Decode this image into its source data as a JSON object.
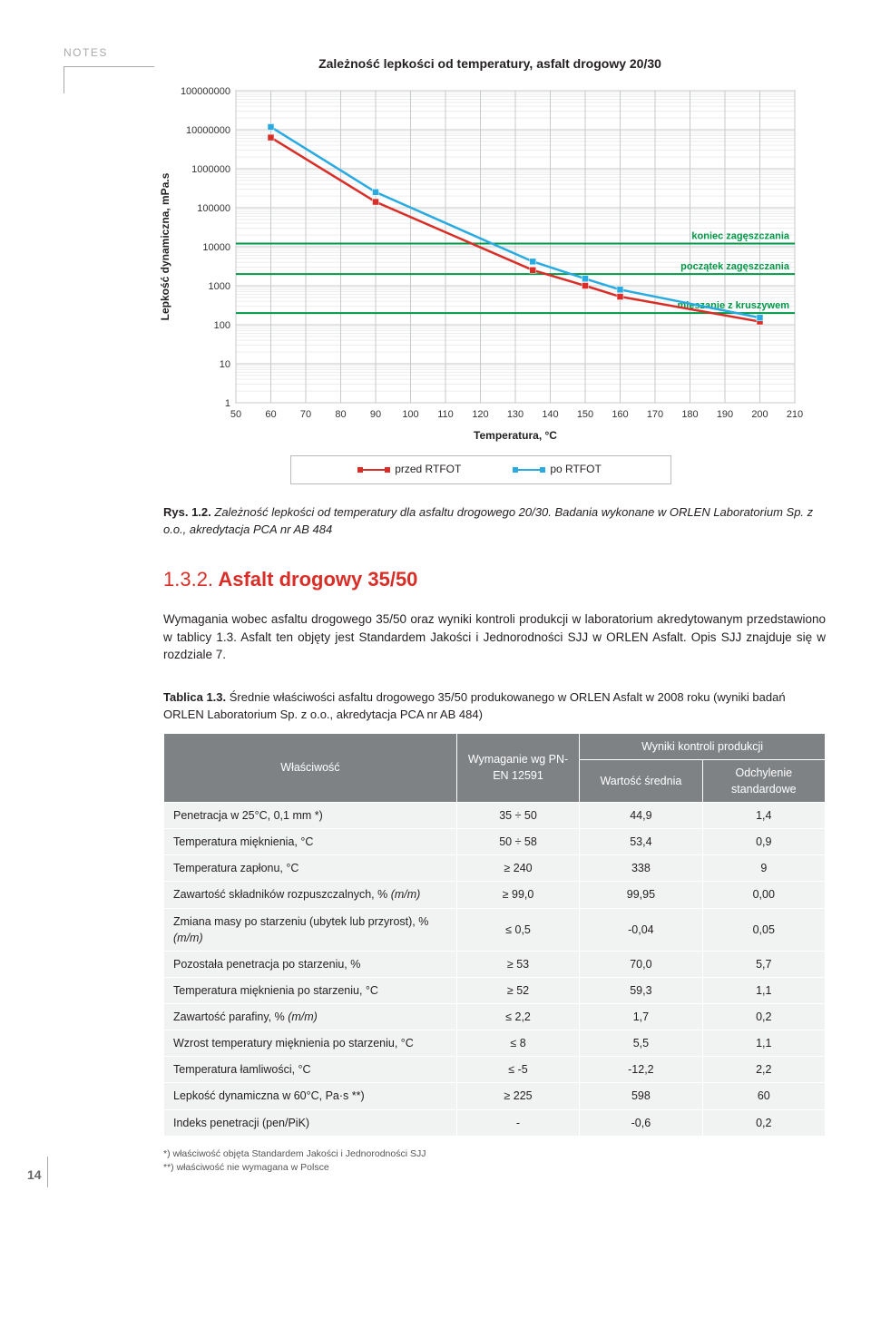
{
  "notes_label": "NOTES",
  "chart": {
    "title": "Zależność lepkości od temperatury, asfalt drogowy 20/30",
    "ylabel": "Lepkość dynamiczna, mPa.s",
    "xlabel": "Temperatura, °C",
    "x_ticks": [
      50,
      60,
      70,
      80,
      90,
      100,
      110,
      120,
      130,
      140,
      150,
      160,
      170,
      180,
      190,
      200,
      210
    ],
    "y_exponents": [
      0,
      1,
      2,
      3,
      4,
      5,
      6,
      7,
      8
    ],
    "y_tick_labels": [
      "1",
      "10",
      "100",
      "1000",
      "10000",
      "100000",
      "1000000",
      "10000000",
      "100000000"
    ],
    "plot_bg": "#ffffff",
    "grid_color": "#c8c9cb",
    "grid_minor_color": "#e2e3e4",
    "border_color": "#7a7c7f",
    "annotations": [
      {
        "text": "koniec zagęszczania",
        "y_exp": 4.08,
        "color": "#009846",
        "text_color": "#009846"
      },
      {
        "text": "początek zagęszczania",
        "y_exp": 3.3,
        "color": "#009846",
        "text_color": "#009846"
      },
      {
        "text": "mieszanie z kruszywem",
        "y_exp": 2.3,
        "color": "#009846",
        "text_color": "#009846"
      }
    ],
    "series": [
      {
        "name": "przed RTFOT",
        "color": "#d92e27",
        "marker_color": "#d92e27",
        "points": [
          {
            "x": 60,
            "y_exp": 6.8
          },
          {
            "x": 90,
            "y_exp": 5.15
          },
          {
            "x": 135,
            "y_exp": 3.4
          },
          {
            "x": 150,
            "y_exp": 3.0
          },
          {
            "x": 160,
            "y_exp": 2.72
          },
          {
            "x": 200,
            "y_exp": 2.08
          }
        ]
      },
      {
        "name": "po RTFOT",
        "color": "#29abe2",
        "marker_color": "#29abe2",
        "points": [
          {
            "x": 60,
            "y_exp": 7.07
          },
          {
            "x": 90,
            "y_exp": 5.4
          },
          {
            "x": 135,
            "y_exp": 3.62
          },
          {
            "x": 150,
            "y_exp": 3.18
          },
          {
            "x": 160,
            "y_exp": 2.9
          },
          {
            "x": 200,
            "y_exp": 2.18
          }
        ]
      }
    ],
    "legend": [
      {
        "label": "przed RTFOT",
        "color": "#d92e27"
      },
      {
        "label": "po RTFOT",
        "color": "#29abe2"
      }
    ]
  },
  "figure_caption": {
    "lead": "Rys. 1.2.",
    "text": "Zależność lepkości od temperatury dla asfaltu drogowego 20/30. Badania wykonane w ORLEN Laboratorium Sp. z o.o., akredytacja PCA nr AB 484"
  },
  "section": {
    "number": "1.3.2.",
    "title": "Asfalt drogowy 35/50",
    "body": "Wymagania wobec asfaltu drogowego 35/50 oraz wyniki kontroli produkcji w laboratorium akredytowanym przedstawiono w tablicy 1.3. Asfalt ten objęty jest Standardem Jakości i Jednorodności SJJ w ORLEN Asfalt. Opis SJJ znajduje się w rozdziale 7."
  },
  "table": {
    "caption_lead": "Tablica 1.3.",
    "caption_text": "Średnie właściwości asfaltu drogowego 35/50 produkowanego w ORLEN Asfalt w 2008 roku (wyniki badań ORLEN Laboratorium Sp. z o.o., akredytacja PCA nr AB 484)",
    "header": {
      "property": "Właściwość",
      "requirement": "Wymaganie wg PN-EN 12591",
      "results_group": "Wyniki kontroli produkcji",
      "mean": "Wartość średnia",
      "stddev": "Odchylenie standardowe"
    },
    "rows": [
      {
        "p": "Penetracja w 25°C, 0,1 mm *)",
        "r": "35 ÷ 50",
        "m": "44,9",
        "s": "1,4"
      },
      {
        "p": "Temperatura mięknienia, °C",
        "r": "50 ÷ 58",
        "m": "53,4",
        "s": "0,9"
      },
      {
        "p": "Temperatura zapłonu, °C",
        "r": "≥ 240",
        "m": "338",
        "s": "9"
      },
      {
        "p": "Zawartość składników rozpuszczalnych, % (m/m)",
        "r": "≥ 99,0",
        "m": "99,95",
        "s": "0,00"
      },
      {
        "p": "Zmiana masy po starzeniu (ubytek lub przyrost), % (m/m)",
        "r": "≤ 0,5",
        "m": "-0,04",
        "s": "0,05"
      },
      {
        "p": "Pozostała penetracja po starzeniu, %",
        "r": "≥ 53",
        "m": "70,0",
        "s": "5,7"
      },
      {
        "p": "Temperatura mięknienia po starzeniu, °C",
        "r": "≥ 52",
        "m": "59,3",
        "s": "1,1"
      },
      {
        "p": "Zawartość parafiny, % (m/m)",
        "r": "≤ 2,2",
        "m": "1,7",
        "s": "0,2"
      },
      {
        "p": "Wzrost temperatury mięknienia po starzeniu, °C",
        "r": "≤ 8",
        "m": "5,5",
        "s": "1,1"
      },
      {
        "p": "Temperatura łamliwości, °C",
        "r": "≤ -5",
        "m": "-12,2",
        "s": "2,2"
      },
      {
        "p": "Lepkość dynamiczna w 60°C, Pa·s **)",
        "r": "≥ 225",
        "m": "598",
        "s": "60"
      },
      {
        "p": "Indeks penetracji (pen/PiK)",
        "r": "-",
        "m": "-0,6",
        "s": "0,2"
      }
    ]
  },
  "footnotes": [
    "*) właściwość objęta Standardem Jakości i Jednorodności SJJ",
    "**) właściwość nie wymagana w Polsce"
  ],
  "page_number": "14"
}
